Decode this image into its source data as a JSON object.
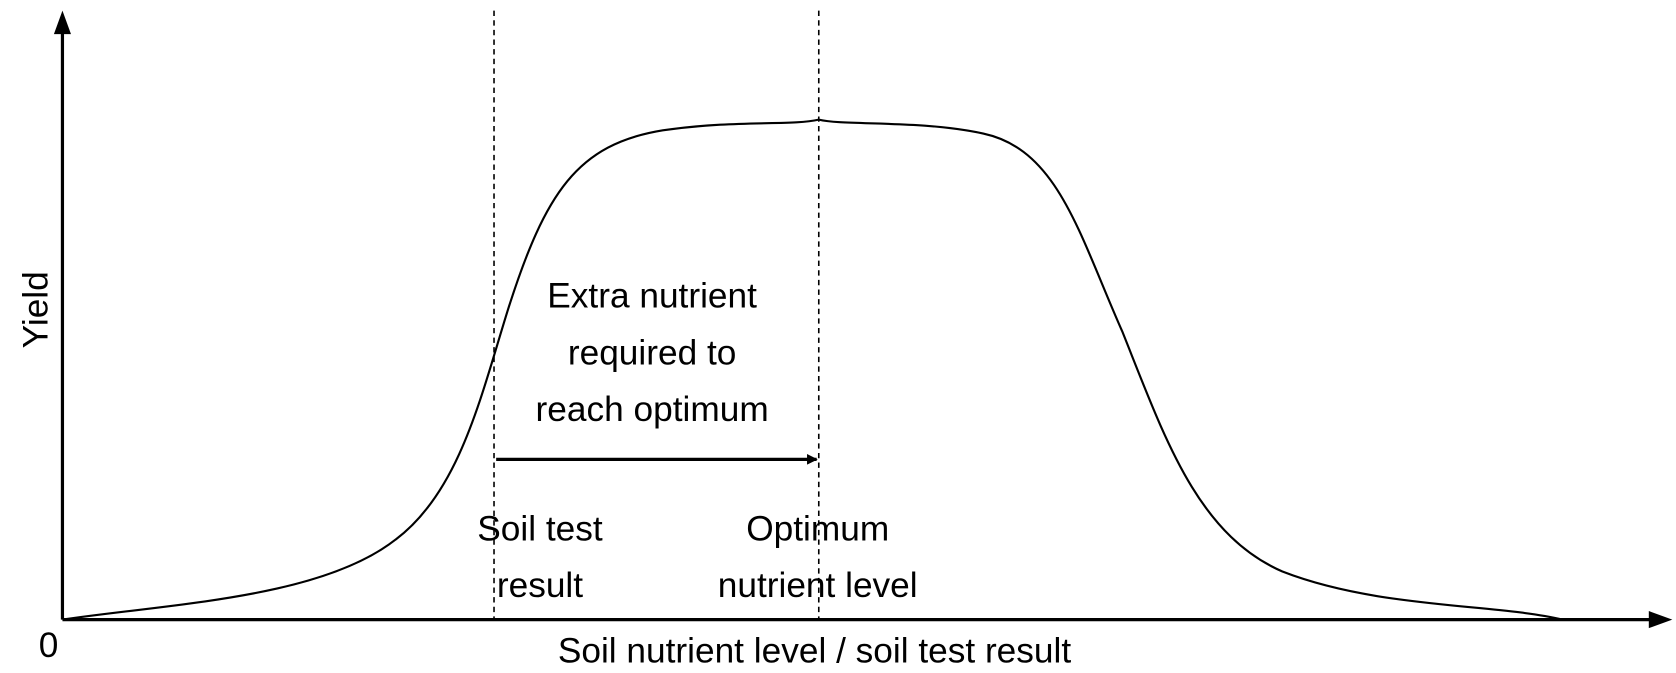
{
  "axes": {
    "y_label": "Yield",
    "origin": "0",
    "x_label": "Soil nutrient level / soil test result"
  },
  "annotations": {
    "arrow_label": [
      "Extra nutrient",
      "required to",
      "reach optimum"
    ],
    "soil_test": [
      "Soil test",
      "result"
    ],
    "optimum": [
      "Optimum",
      "nutrient level"
    ]
  }
}
